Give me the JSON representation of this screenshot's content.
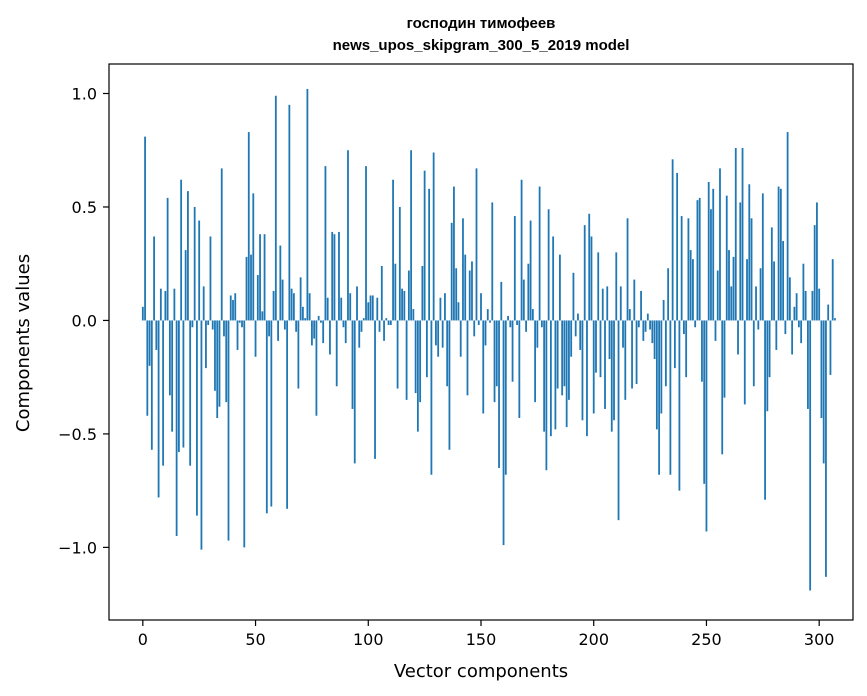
{
  "chart_data": {
    "type": "bar",
    "title": [
      "господин тимофеев",
      "news_upos_skipgram_300_5_2019 model"
    ],
    "xlabel": "Vector components",
    "ylabel": "Components values",
    "xlim": [
      -15,
      315
    ],
    "ylim": [
      -1.32,
      1.13
    ],
    "xticks": [
      0,
      50,
      100,
      150,
      200,
      250,
      300
    ],
    "yticks": [
      -1.0,
      -0.5,
      0.0,
      0.5,
      1.0
    ],
    "ytick_labels": [
      "−1.0",
      "−0.5",
      "0.0",
      "0.5",
      "1.0"
    ],
    "xtick_labels": [
      "0",
      "50",
      "100",
      "150",
      "200",
      "250",
      "300"
    ],
    "grid": false,
    "bar_color": "#1f77b4",
    "values": [
      0.06,
      0.81,
      -0.42,
      -0.2,
      -0.57,
      0.37,
      -0.13,
      -0.78,
      0.14,
      -0.64,
      0.13,
      0.54,
      -0.33,
      -0.49,
      0.14,
      -0.95,
      -0.58,
      0.62,
      -0.56,
      0.31,
      0.57,
      -0.64,
      -0.03,
      0.5,
      -0.86,
      0.44,
      -1.01,
      0.15,
      -0.21,
      -0.02,
      0.37,
      -0.04,
      -0.31,
      -0.43,
      -0.38,
      0.67,
      -0.07,
      -0.36,
      -0.97,
      0.11,
      0.09,
      0.12,
      -0.13,
      -0.01,
      -0.03,
      -1.0,
      0.28,
      0.83,
      0.29,
      0.56,
      -0.16,
      0.2,
      0.38,
      0.04,
      0.38,
      -0.85,
      -0.07,
      -0.82,
      0.13,
      0.99,
      -0.09,
      0.33,
      0.18,
      -0.04,
      -0.83,
      0.95,
      0.14,
      0.12,
      -0.05,
      -0.3,
      0.19,
      0.06,
      0.01,
      1.02,
      0.12,
      -0.11,
      -0.08,
      -0.42,
      0.02,
      -0.01,
      -0.1,
      0.68,
      0.1,
      -0.15,
      0.39,
      0.38,
      -0.29,
      0.39,
      0.1,
      -0.03,
      -0.1,
      0.75,
      0.12,
      -0.39,
      -0.63,
      0.15,
      -0.12,
      -0.05,
      0.01,
      0.68,
      0.08,
      0.11,
      0.11,
      -0.61,
      0.1,
      -0.05,
      0.24,
      -0.09,
      0.01,
      -0.02,
      -0.02,
      0.62,
      0.25,
      -0.3,
      0.5,
      0.14,
      0.13,
      -0.35,
      0.22,
      0.75,
      0.05,
      -0.32,
      -0.49,
      -0.36,
      0.24,
      0.66,
      -0.25,
      0.58,
      -0.68,
      0.74,
      -0.11,
      -0.16,
      0.1,
      -0.12,
      0.12,
      -0.29,
      -0.57,
      0.43,
      0.59,
      0.23,
      0.08,
      -0.16,
      0.45,
      0.29,
      -0.33,
      0.22,
      0.26,
      -0.07,
      0.67,
      -0.02,
      0.12,
      -0.41,
      -0.11,
      0.05,
      -0.01,
      0.52,
      -0.36,
      -0.29,
      -0.65,
      0.17,
      -0.99,
      -0.68,
      0.02,
      -0.03,
      -0.27,
      0.46,
      -0.02,
      -0.43,
      0.62,
      0.18,
      -0.05,
      0.25,
      0.44,
      0.05,
      -0.36,
      -0.12,
      0.59,
      -0.03,
      -0.49,
      -0.66,
      0.49,
      -0.51,
      0.37,
      -0.48,
      -0.3,
      0.29,
      -0.33,
      -0.29,
      -0.47,
      -0.35,
      -0.16,
      0.21,
      -0.07,
      0.03,
      -0.13,
      -0.44,
      0.42,
      -0.51,
      0.47,
      0.37,
      -0.41,
      -0.23,
      0.3,
      -0.25,
      0.14,
      -0.39,
      0.15,
      -0.17,
      -0.49,
      -0.44,
      0.3,
      -0.88,
      0.15,
      -0.12,
      -0.35,
      0.45,
      0.05,
      -0.3,
      0.18,
      -0.28,
      -0.03,
      0.13,
      -0.09,
      -0.05,
      0.03,
      -0.04,
      -0.1,
      -0.17,
      -0.48,
      -0.68,
      -0.41,
      0.09,
      -0.29,
      0.23,
      -0.68,
      0.71,
      -0.21,
      0.65,
      -0.75,
      0.46,
      -0.06,
      -0.25,
      0.45,
      0.31,
      0.27,
      -0.03,
      0.53,
      0.54,
      -0.27,
      -0.72,
      -0.93,
      0.61,
      0.49,
      0.58,
      -0.09,
      0.22,
      0.67,
      -0.59,
      -0.34,
      0.55,
      0.31,
      0.15,
      0.28,
      0.76,
      -0.15,
      0.52,
      0.76,
      -0.37,
      0.27,
      0.6,
      0.45,
      -0.29,
      0.15,
      -0.04,
      0.23,
      0.56,
      -0.79,
      -0.4,
      -0.25,
      0.41,
      0.26,
      -0.13,
      0.59,
      0.58,
      0.35,
      -0.06,
      0.83,
      0.19,
      -0.15,
      0.06,
      0.12,
      -0.03,
      -0.1,
      0.25,
      0.13,
      -0.39,
      -1.19,
      0.13,
      0.42,
      0.52,
      0.14,
      -0.43,
      -0.63,
      -1.13,
      0.07,
      -0.24,
      0.27,
      0.01
    ]
  }
}
